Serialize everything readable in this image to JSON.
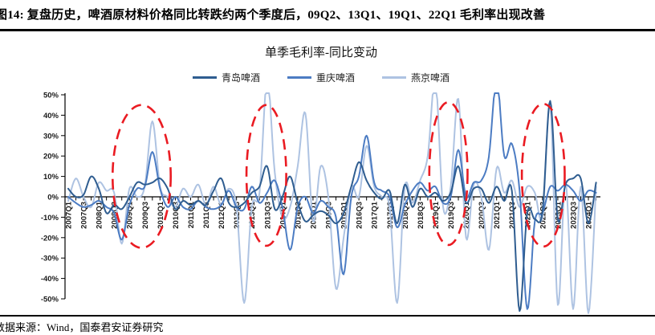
{
  "header": {
    "title": "图14: 复盘历史，啤酒原材料价格同比转跌约两个季度后，09Q2、13Q1、19Q1、22Q1 毛利率出现改善"
  },
  "footer": {
    "source": "数据来源：Wind，国泰君安证券研究"
  },
  "chart_data": {
    "type": "line",
    "title": "单季毛利率-同比变动",
    "legend_position": "top",
    "grid": false,
    "ylim": [
      -50,
      50
    ],
    "y_ticks": [
      "50%",
      "40%",
      "30%",
      "20%",
      "10%",
      "0%",
      "-10%",
      "-20%",
      "-30%",
      "-40%",
      "-50%"
    ],
    "x_label_interval": 2,
    "x": [
      "2007Q1",
      "2007Q2",
      "2007Q3",
      "2007Q4",
      "2008Q1",
      "2008Q2",
      "2008Q3",
      "2008Q4",
      "2009Q1",
      "2009Q2",
      "2009Q3",
      "2009Q4",
      "2010Q1",
      "2010Q2",
      "2010Q3",
      "2010Q4",
      "2011Q1",
      "2011Q2",
      "2011Q3",
      "2011Q4",
      "2012Q1",
      "2012Q2",
      "2012Q3",
      "2012Q4",
      "2013Q1",
      "2013Q2",
      "2013Q3",
      "2013Q4",
      "2014Q1",
      "2014Q2",
      "2014Q3",
      "2014Q4",
      "2015Q1",
      "2015Q2",
      "2015Q3",
      "2015Q4",
      "2016Q1",
      "2016Q2",
      "2016Q3",
      "2016Q4",
      "2017Q1",
      "2017Q2",
      "2017Q3",
      "2017Q4",
      "2018Q1",
      "2018Q2",
      "2018Q3",
      "2018Q4",
      "2019Q1",
      "2019Q2",
      "2019Q3",
      "2019Q4",
      "2020Q1",
      "2020Q2",
      "2020Q3",
      "2020Q4",
      "2021Q1",
      "2021Q2",
      "2021Q3",
      "2021Q4",
      "2022Q1",
      "2022Q2",
      "2022Q3",
      "2022Q4",
      "2023Q1",
      "2023Q2",
      "2023Q3",
      "2023Q4",
      "2024Q1",
      "2024Q2"
    ],
    "series": [
      {
        "name": "青岛啤酒",
        "color": "#2F5D90",
        "values": [
          4,
          0,
          1,
          10,
          4,
          -8,
          -4,
          -6,
          0,
          7,
          6,
          7,
          9,
          4,
          -6,
          -2,
          -4,
          -2,
          -4,
          3,
          9,
          -3,
          -5,
          -3,
          2,
          5,
          15,
          -6,
          0,
          10,
          -3,
          -12,
          -9,
          -7,
          -9,
          -13,
          -8,
          5,
          17,
          8,
          2,
          -1,
          3,
          -13,
          6,
          -5,
          4,
          0,
          2,
          -2,
          2,
          15,
          -3,
          4,
          4,
          -3,
          5,
          -2,
          3,
          -56,
          -8,
          -11,
          -7,
          47,
          -11,
          6,
          9,
          9,
          -13,
          7
        ]
      },
      {
        "name": "重庆啤酒",
        "color": "#4C7CC3",
        "values": [
          0,
          -3,
          -5,
          -4,
          -2,
          -5,
          -8,
          -21,
          -4,
          4,
          5,
          22,
          4,
          -5,
          0,
          -5,
          -6,
          -2,
          -5,
          -6,
          -4,
          3,
          -5,
          -6,
          5,
          -3,
          2,
          8,
          -5,
          -26,
          -5,
          0,
          -8,
          -2,
          -5,
          -10,
          -38,
          0,
          10,
          30,
          7,
          3,
          0,
          -15,
          -4,
          3,
          7,
          3,
          5,
          -3,
          0,
          23,
          0,
          7,
          8,
          20,
          58,
          20,
          26,
          3,
          -55,
          -12,
          -8,
          5,
          3,
          6,
          3,
          -2,
          3,
          2
        ]
      },
      {
        "name": "燕京啤酒",
        "color": "#AEC3E2",
        "values": [
          -2,
          9,
          0,
          -5,
          7,
          3,
          2,
          -23,
          4,
          0,
          5,
          37,
          5,
          0,
          -5,
          4,
          0,
          6,
          -4,
          5,
          -4,
          4,
          -5,
          -52,
          -5,
          2,
          58,
          12,
          -10,
          -5,
          15,
          41,
          -12,
          15,
          0,
          -45,
          -20,
          5,
          0,
          25,
          5,
          0,
          -5,
          -52,
          5,
          -3,
          8,
          20,
          58,
          -5,
          5,
          48,
          -20,
          6,
          0,
          -26,
          14,
          2,
          8,
          -5,
          5,
          2,
          -10,
          46,
          -53,
          8,
          -55,
          5,
          -57,
          5
        ]
      }
    ],
    "annotations": {
      "color": "#EA1B22",
      "ellipses": [
        {
          "q": 9.6,
          "v": 10.0,
          "rq": 3.8,
          "rv": 35.0
        },
        {
          "q": 25.9,
          "v": 10.5,
          "rq": 2.6,
          "rv": 34.5
        },
        {
          "q": 49.7,
          "v": 11.4,
          "rq": 2.5,
          "rv": 35.0
        },
        {
          "q": 62.1,
          "v": 10.6,
          "rq": 2.8,
          "rv": 35.0
        }
      ]
    }
  }
}
